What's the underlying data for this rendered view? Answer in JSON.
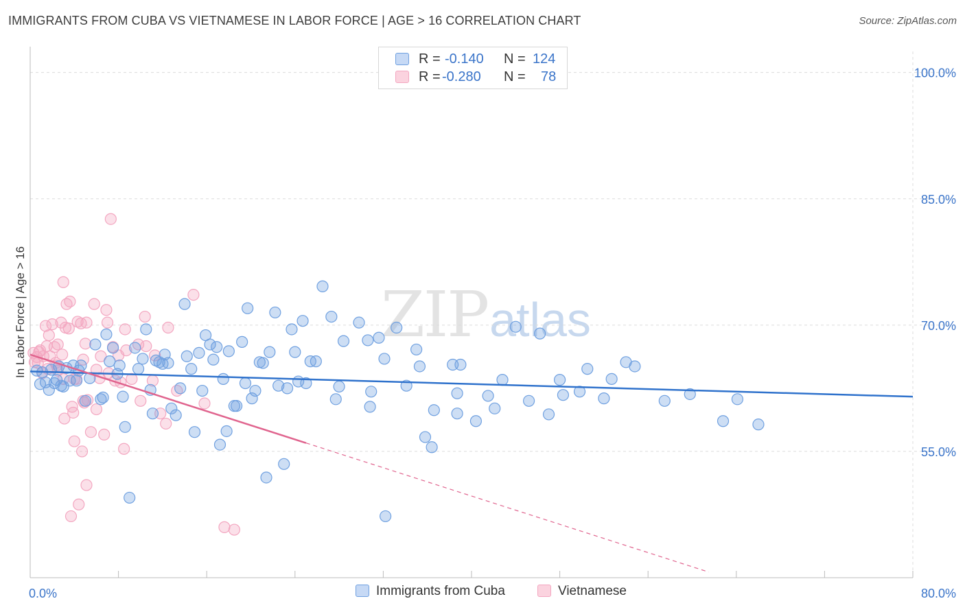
{
  "title": "IMMIGRANTS FROM CUBA VS VIETNAMESE IN LABOR FORCE | AGE > 16 CORRELATION CHART",
  "source": "Source: ZipAtlas.com",
  "watermark": {
    "zip": "ZIP",
    "atlas": "atlas"
  },
  "legend_top": [
    {
      "r_label": "R =",
      "r_value": "-0.140",
      "n_label": "N =",
      "n_value": "124"
    },
    {
      "r_label": "R =",
      "r_value": "-0.280",
      "n_label": "N =",
      "n_value": "78"
    }
  ],
  "legend_bottom": [
    "Immigrants from Cuba",
    "Vietnamese"
  ],
  "chart_data": {
    "type": "scatter",
    "ylabel": "In Labor Force | Age > 16",
    "xlim": [
      0,
      80
    ],
    "ylim": [
      40,
      102.5
    ],
    "x_tick_labels": [
      {
        "x": 0,
        "label": "0.0%"
      },
      {
        "x": 80,
        "label": "80.0%"
      }
    ],
    "y_ticks": [
      {
        "y": 100,
        "label": "100.0%"
      },
      {
        "y": 85,
        "label": "85.0%"
      },
      {
        "y": 70,
        "label": "70.0%"
      },
      {
        "y": 55,
        "label": "55.0%"
      }
    ],
    "grid": true,
    "colors": {
      "cuba": "#6fa0e0",
      "cuba_line": "#2f72cc",
      "viet": "#f3a6c0",
      "viet_line": "#e0648e",
      "tick_label": "#3a74c9"
    },
    "series": [
      {
        "name": "Immigrants from Cuba",
        "trend": {
          "x0": 0,
          "y0": 64.5,
          "x1": 80,
          "y1": 61.5
        },
        "points": [
          [
            0.6,
            64.6
          ],
          [
            0.9,
            63.0
          ],
          [
            1.1,
            64.4
          ],
          [
            1.4,
            63.2
          ],
          [
            1.7,
            62.3
          ],
          [
            1.9,
            64.7
          ],
          [
            2.2,
            63.1
          ],
          [
            2.4,
            63.5
          ],
          [
            2.6,
            65.1
          ],
          [
            2.8,
            62.8
          ],
          [
            3.0,
            62.7
          ],
          [
            3.3,
            64.9
          ],
          [
            3.6,
            63.4
          ],
          [
            3.9,
            65.2
          ],
          [
            4.4,
            64.6
          ],
          [
            4.6,
            65.2
          ],
          [
            5.0,
            61.0
          ],
          [
            5.4,
            63.7
          ],
          [
            5.9,
            67.7
          ],
          [
            6.4,
            61.2
          ],
          [
            6.6,
            61.4
          ],
          [
            7.2,
            65.7
          ],
          [
            7.5,
            67.3
          ],
          [
            7.9,
            64.2
          ],
          [
            8.1,
            65.2
          ],
          [
            8.4,
            61.5
          ],
          [
            8.6,
            57.9
          ],
          [
            9.0,
            49.5
          ],
          [
            9.5,
            67.3
          ],
          [
            9.8,
            64.8
          ],
          [
            10.2,
            66.0
          ],
          [
            10.5,
            69.5
          ],
          [
            10.9,
            62.3
          ],
          [
            11.1,
            59.5
          ],
          [
            11.4,
            65.8
          ],
          [
            11.7,
            65.6
          ],
          [
            12.0,
            65.4
          ],
          [
            12.2,
            66.5
          ],
          [
            12.5,
            65.5
          ],
          [
            12.8,
            60.1
          ],
          [
            13.2,
            59.3
          ],
          [
            13.6,
            62.5
          ],
          [
            14.0,
            72.5
          ],
          [
            14.2,
            66.3
          ],
          [
            14.6,
            64.8
          ],
          [
            14.9,
            57.3
          ],
          [
            15.3,
            66.7
          ],
          [
            15.6,
            62.2
          ],
          [
            15.9,
            68.8
          ],
          [
            16.3,
            67.7
          ],
          [
            16.6,
            65.9
          ],
          [
            16.9,
            67.4
          ],
          [
            17.2,
            55.8
          ],
          [
            17.5,
            63.6
          ],
          [
            17.8,
            57.4
          ],
          [
            18.0,
            66.9
          ],
          [
            18.5,
            60.4
          ],
          [
            18.7,
            60.4
          ],
          [
            19.2,
            68.0
          ],
          [
            19.5,
            63.1
          ],
          [
            19.7,
            72.0
          ],
          [
            20.1,
            61.3
          ],
          [
            20.4,
            62.2
          ],
          [
            20.8,
            65.6
          ],
          [
            21.1,
            65.5
          ],
          [
            21.4,
            51.9
          ],
          [
            21.7,
            66.8
          ],
          [
            22.2,
            71.5
          ],
          [
            22.5,
            62.8
          ],
          [
            23.0,
            53.5
          ],
          [
            23.3,
            62.5
          ],
          [
            23.7,
            69.5
          ],
          [
            24.0,
            66.8
          ],
          [
            24.3,
            63.3
          ],
          [
            24.7,
            70.5
          ],
          [
            25.0,
            63.1
          ],
          [
            25.4,
            65.7
          ],
          [
            25.9,
            65.7
          ],
          [
            26.5,
            74.6
          ],
          [
            27.3,
            71.0
          ],
          [
            27.7,
            61.2
          ],
          [
            28.0,
            62.7
          ],
          [
            28.4,
            68.1
          ],
          [
            29.8,
            70.3
          ],
          [
            30.6,
            68.2
          ],
          [
            30.9,
            62.1
          ],
          [
            30.8,
            60.3
          ],
          [
            31.6,
            68.5
          ],
          [
            32.1,
            66.0
          ],
          [
            32.2,
            47.3
          ],
          [
            33.2,
            69.7
          ],
          [
            34.1,
            62.8
          ],
          [
            35.0,
            67.1
          ],
          [
            35.3,
            65.1
          ],
          [
            35.8,
            56.7
          ],
          [
            36.4,
            55.5
          ],
          [
            36.6,
            59.9
          ],
          [
            38.3,
            65.3
          ],
          [
            38.7,
            59.5
          ],
          [
            38.7,
            61.9
          ],
          [
            39.0,
            65.3
          ],
          [
            40.4,
            58.6
          ],
          [
            41.5,
            61.6
          ],
          [
            42.1,
            60.1
          ],
          [
            42.8,
            63.5
          ],
          [
            44.0,
            69.8
          ],
          [
            45.2,
            61.0
          ],
          [
            46.2,
            69.0
          ],
          [
            47.0,
            59.4
          ],
          [
            48.0,
            63.5
          ],
          [
            48.3,
            61.7
          ],
          [
            49.8,
            62.1
          ],
          [
            50.5,
            64.8
          ],
          [
            52.0,
            61.3
          ],
          [
            52.7,
            63.6
          ],
          [
            54.0,
            65.6
          ],
          [
            54.8,
            65.1
          ],
          [
            57.5,
            61.0
          ],
          [
            59.8,
            61.8
          ],
          [
            62.8,
            58.6
          ],
          [
            64.1,
            61.2
          ],
          [
            66.0,
            58.2
          ],
          [
            4.2,
            63.4
          ],
          [
            6.9,
            68.9
          ]
        ]
      },
      {
        "name": "Vietnamese",
        "trend": {
          "x0": 0,
          "y0": 66.5,
          "x1": 25,
          "y1": 56.0,
          "x_dash_end": 61.5
        },
        "points": [
          [
            0.3,
            66.7
          ],
          [
            0.4,
            65.6
          ],
          [
            0.6,
            66.2
          ],
          [
            0.8,
            66.8
          ],
          [
            0.9,
            67.0
          ],
          [
            1.1,
            64.3
          ],
          [
            1.2,
            66.3
          ],
          [
            1.4,
            69.9
          ],
          [
            1.5,
            67.5
          ],
          [
            1.7,
            68.8
          ],
          [
            1.8,
            66.3
          ],
          [
            2.0,
            70.1
          ],
          [
            2.2,
            67.4
          ],
          [
            2.3,
            65.5
          ],
          [
            2.5,
            64.6
          ],
          [
            2.8,
            70.3
          ],
          [
            3.0,
            63.6
          ],
          [
            3.0,
            75.1
          ],
          [
            3.2,
            69.7
          ],
          [
            3.3,
            72.5
          ],
          [
            3.5,
            69.6
          ],
          [
            3.6,
            72.8
          ],
          [
            3.8,
            60.3
          ],
          [
            3.9,
            59.6
          ],
          [
            4.0,
            56.2
          ],
          [
            4.2,
            63.6
          ],
          [
            4.3,
            70.4
          ],
          [
            4.6,
            70.2
          ],
          [
            4.8,
            65.9
          ],
          [
            4.9,
            60.8
          ],
          [
            5.0,
            67.8
          ],
          [
            5.2,
            61.1
          ],
          [
            5.5,
            57.3
          ],
          [
            5.8,
            72.5
          ],
          [
            6.0,
            60.0
          ],
          [
            6.3,
            63.7
          ],
          [
            6.4,
            66.3
          ],
          [
            6.7,
            57.0
          ],
          [
            6.9,
            71.8
          ],
          [
            7.0,
            70.3
          ],
          [
            7.1,
            64.3
          ],
          [
            7.3,
            82.6
          ],
          [
            7.5,
            67.4
          ],
          [
            7.7,
            63.4
          ],
          [
            8.0,
            66.4
          ],
          [
            8.2,
            63.2
          ],
          [
            8.6,
            69.5
          ],
          [
            8.7,
            67.0
          ],
          [
            9.2,
            63.6
          ],
          [
            9.8,
            67.7
          ],
          [
            10.0,
            61.0
          ],
          [
            10.4,
            71.0
          ],
          [
            10.5,
            67.5
          ],
          [
            11.1,
            63.4
          ],
          [
            11.3,
            66.4
          ],
          [
            11.8,
            59.5
          ],
          [
            12.3,
            58.3
          ],
          [
            12.5,
            69.7
          ],
          [
            13.3,
            62.2
          ],
          [
            14.8,
            73.6
          ],
          [
            15.8,
            60.7
          ],
          [
            17.6,
            46.0
          ],
          [
            18.5,
            45.7
          ],
          [
            2.5,
            67.7
          ],
          [
            5.1,
            70.3
          ],
          [
            6.0,
            64.7
          ],
          [
            3.1,
            58.9
          ],
          [
            4.0,
            63.6
          ],
          [
            4.8,
            61.0
          ],
          [
            3.7,
            47.3
          ],
          [
            4.4,
            48.7
          ],
          [
            4.7,
            55.0
          ],
          [
            5.1,
            51.0
          ],
          [
            8.5,
            55.3
          ],
          [
            1.6,
            64.8
          ],
          [
            2.4,
            65.2
          ],
          [
            2.9,
            66.5
          ],
          [
            0.7,
            65.5
          ]
        ]
      }
    ]
  }
}
